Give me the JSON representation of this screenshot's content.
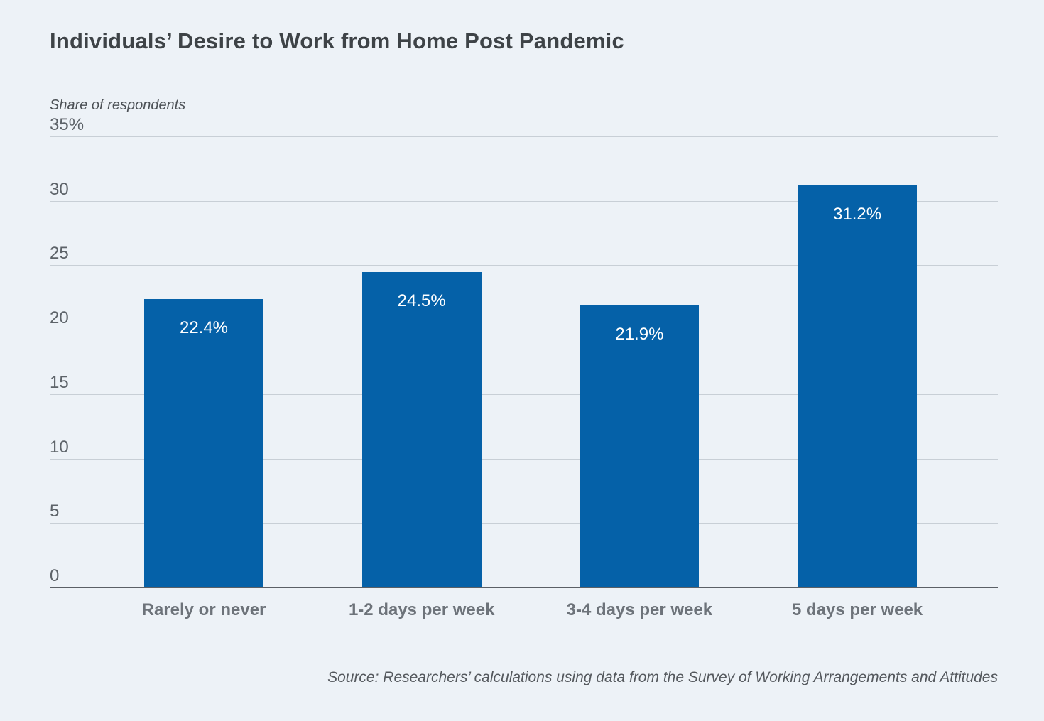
{
  "page": {
    "background_color": "#edf2f7"
  },
  "chart_data": {
    "type": "bar",
    "title": "Individuals’ Desire to Work from Home Post Pandemic",
    "ylabel": "Share of respondents",
    "xlabel": "",
    "categories": [
      "Rarely or never",
      "1-2 days per week",
      "3-4 days per week",
      "5 days per week"
    ],
    "values": [
      22.4,
      24.5,
      21.9,
      31.2
    ],
    "value_labels": [
      "22.4%",
      "24.5%",
      "21.9%",
      "31.2%"
    ],
    "ylim": [
      0,
      35
    ],
    "yticks": [
      0,
      5,
      10,
      15,
      20,
      25,
      30,
      35
    ],
    "ytick_labels": [
      "0",
      "5",
      "10",
      "15",
      "20",
      "25",
      "30",
      "35%"
    ],
    "grid": "horizontal",
    "legend": "none",
    "bar_color": "#0561a8",
    "source": "Source: Researchers’ calculations using data from the Survey of Working Arrangements and Attitudes"
  }
}
